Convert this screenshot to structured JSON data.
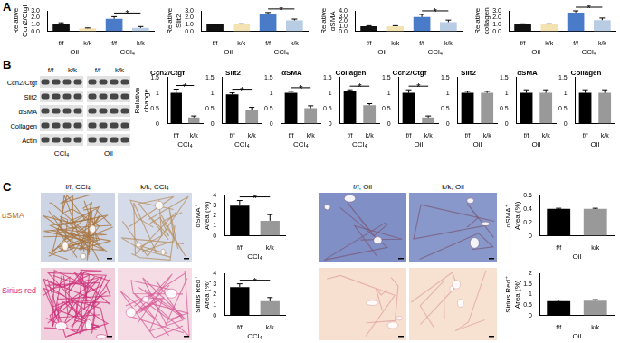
{
  "panel_labels": [
    "A",
    "B",
    "C"
  ],
  "chart_data": [
    {
      "type": "bar",
      "ylabel": [
        "Relative",
        "Ccn2/Ctgf"
      ],
      "categories": [
        "f/f",
        "k/k",
        "f/f",
        "k/k"
      ],
      "group_labels": [
        "Oil",
        "Oil",
        "CCl₄",
        "CCl₄"
      ],
      "values": [
        1.0,
        0.45,
        1.85,
        0.5
      ],
      "errors": [
        0.25,
        0.05,
        0.3,
        0.2
      ],
      "colors": [
        "#111111",
        "#f3e3b3",
        "#4a7bc8",
        "#b8cce4"
      ],
      "ylim": [
        0,
        3
      ],
      "yticks": [
        {
          "value": 0,
          "label": "0.0"
        },
        {
          "value": 1,
          "label": "1.0"
        },
        {
          "value": 2,
          "label": "2.0"
        },
        {
          "value": 3,
          "label": "3.0"
        }
      ],
      "grid": false,
      "annotations": [
        {
          "from": 2,
          "to": 3,
          "text": "*"
        }
      ]
    },
    {
      "type": "bar",
      "ylabel": [
        "Relative",
        "Slit2"
      ],
      "categories": [
        "f/f",
        "k/k",
        "f/f",
        "k/k"
      ],
      "group_labels": [
        "Oil",
        "Oil",
        "CCl₄",
        "CCl₄"
      ],
      "values": [
        1.0,
        1.0,
        2.6,
        1.6
      ],
      "errors": [
        0.05,
        0.1,
        0.15,
        0.2
      ],
      "colors": [
        "#111111",
        "#f3e3b3",
        "#4a7bc8",
        "#b8cce4"
      ],
      "ylim": [
        0,
        3
      ],
      "yticks": [
        {
          "value": 0,
          "label": "0.0"
        },
        {
          "value": 1,
          "label": "1.0"
        },
        {
          "value": 2,
          "label": "2.0"
        },
        {
          "value": 3,
          "label": "3.0"
        }
      ],
      "grid": false,
      "annotations": [
        {
          "from": 2,
          "to": 3,
          "text": "*"
        }
      ]
    },
    {
      "type": "bar",
      "ylabel": [
        "Relative",
        "αSMA"
      ],
      "categories": [
        "f/f",
        "k/k",
        "f/f",
        "k/k"
      ],
      "group_labels": [
        "Oil",
        "Oil",
        "CCl₄",
        "CCl₄"
      ],
      "values": [
        1.0,
        1.0,
        2.8,
        1.8
      ],
      "errors": [
        0.1,
        0.1,
        0.5,
        0.4
      ],
      "colors": [
        "#111111",
        "#f3e3b3",
        "#4a7bc8",
        "#b8cce4"
      ],
      "ylim": [
        0,
        4
      ],
      "yticks": [
        {
          "value": 0,
          "label": "0.0"
        },
        {
          "value": 1,
          "label": "1.0"
        },
        {
          "value": 2,
          "label": "2.0"
        },
        {
          "value": 3,
          "label": "3.0"
        },
        {
          "value": 4,
          "label": "4.0"
        }
      ],
      "grid": false,
      "annotations": [
        {
          "from": 2,
          "to": 3,
          "text": "*"
        }
      ]
    },
    {
      "type": "bar",
      "ylabel": [
        "Relative",
        "collagen"
      ],
      "categories": [
        "f/f",
        "k/k",
        "f/f",
        "k/k"
      ],
      "group_labels": [
        "Oil",
        "Oil",
        "CCl₄",
        "CCl₄"
      ],
      "values": [
        1.0,
        1.0,
        2.75,
        1.65
      ],
      "errors": [
        0.1,
        0.1,
        0.25,
        0.3
      ],
      "colors": [
        "#111111",
        "#f3e3b3",
        "#4a7bc8",
        "#b8cce4"
      ],
      "ylim": [
        0,
        3
      ],
      "yticks": [
        {
          "value": 0,
          "label": "0.0"
        },
        {
          "value": 1,
          "label": "1.0"
        },
        {
          "value": 2,
          "label": "2.0"
        },
        {
          "value": 3,
          "label": "3.0"
        }
      ],
      "grid": false,
      "annotations": [
        {
          "from": 2,
          "to": 3,
          "text": "*"
        }
      ]
    },
    {
      "type": "bar",
      "title": "Ccn2/Ctgf",
      "ylabel": [
        "Relative",
        "change"
      ],
      "categories": [
        "f/f",
        "k/k"
      ],
      "group_labels": [
        "CCl₄",
        "CCl₄"
      ],
      "values": [
        1.0,
        0.2
      ],
      "errors": [
        0.12,
        0.05
      ],
      "colors": [
        "#000000",
        "#999999"
      ],
      "ylim": [
        0,
        1.5
      ],
      "yticks": [
        0,
        0.5,
        1,
        1.5
      ],
      "grid": false,
      "annotations": [
        {
          "from": 0,
          "to": 1,
          "text": "*"
        }
      ]
    },
    {
      "type": "bar",
      "title": "Slit2",
      "categories": [
        "f/f",
        "k/k"
      ],
      "group_labels": [
        "CCl₄",
        "CCl₄"
      ],
      "values": [
        0.95,
        0.45
      ],
      "errors": [
        0.05,
        0.08
      ],
      "colors": [
        "#000000",
        "#999999"
      ],
      "ylim": [
        0,
        1.5
      ],
      "yticks": [
        0,
        0.5,
        1,
        1.5
      ],
      "grid": false,
      "annotations": [
        {
          "from": 0,
          "to": 1,
          "text": "*"
        }
      ]
    },
    {
      "type": "bar",
      "title": "αSMA",
      "categories": [
        "f/f",
        "k/k"
      ],
      "group_labels": [
        "CCl₄",
        "CCl₄"
      ],
      "values": [
        1.0,
        0.5
      ],
      "errors": [
        0.05,
        0.08
      ],
      "colors": [
        "#000000",
        "#999999"
      ],
      "ylim": [
        0,
        1.5
      ],
      "yticks": [
        0,
        0.5,
        1,
        1.5
      ],
      "grid": false,
      "annotations": [
        {
          "from": 0,
          "to": 1,
          "text": "*"
        }
      ]
    },
    {
      "type": "bar",
      "title": "Collagen",
      "categories": [
        "f/f",
        "k/k"
      ],
      "group_labels": [
        "CCl₄",
        "CCl₄"
      ],
      "values": [
        1.05,
        0.6
      ],
      "errors": [
        0.05,
        0.05
      ],
      "colors": [
        "#000000",
        "#999999"
      ],
      "ylim": [
        0,
        1.5
      ],
      "yticks": [
        0,
        0.5,
        1,
        1.5
      ],
      "grid": false,
      "annotations": [
        {
          "from": 0,
          "to": 1,
          "text": "*"
        }
      ]
    },
    {
      "type": "bar",
      "title": "Ccn2/Ctgf",
      "categories": [
        "f/f",
        "k/k"
      ],
      "group_labels": [
        "Oil",
        "Oil"
      ],
      "values": [
        1.0,
        0.2
      ],
      "errors": [
        0.1,
        0.05
      ],
      "colors": [
        "#000000",
        "#999999"
      ],
      "ylim": [
        0,
        1.5
      ],
      "yticks": [
        0,
        0.5,
        1,
        1.5
      ],
      "grid": false,
      "annotations": [
        {
          "from": 0,
          "to": 1,
          "text": "*"
        }
      ]
    },
    {
      "type": "bar",
      "title": "Slit2",
      "categories": [
        "f/f",
        "k/k"
      ],
      "group_labels": [
        "Oil",
        "Oil"
      ],
      "values": [
        1.0,
        1.0
      ],
      "errors": [
        0.05,
        0.05
      ],
      "colors": [
        "#000000",
        "#999999"
      ],
      "ylim": [
        0,
        1.5
      ],
      "yticks": [
        0,
        0.5,
        1,
        1.5
      ],
      "grid": false
    },
    {
      "type": "bar",
      "title": "αSMA",
      "categories": [
        "f/f",
        "k/k"
      ],
      "group_labels": [
        "Oil",
        "Oil"
      ],
      "values": [
        1.0,
        1.0
      ],
      "errors": [
        0.1,
        0.1
      ],
      "colors": [
        "#000000",
        "#999999"
      ],
      "ylim": [
        0,
        1.5
      ],
      "yticks": [
        0,
        0.5,
        1,
        1.5
      ],
      "grid": false
    },
    {
      "type": "bar",
      "title": "Collagen",
      "categories": [
        "f/f",
        "k/k"
      ],
      "group_labels": [
        "Oil",
        "Oil"
      ],
      "values": [
        1.0,
        1.0
      ],
      "errors": [
        0.1,
        0.1
      ],
      "colors": [
        "#000000",
        "#999999"
      ],
      "ylim": [
        0,
        1.5
      ],
      "yticks": [
        0,
        0.5,
        1,
        1.5
      ],
      "grid": false
    },
    {
      "type": "bar",
      "ylabel": [
        "αSMA⁺",
        "Area (%)"
      ],
      "categories": [
        "f/f",
        "k/k"
      ],
      "group_labels": [
        "CCl₄",
        "CCl₄"
      ],
      "values": [
        3.0,
        1.5
      ],
      "errors": [
        0.5,
        0.6
      ],
      "colors": [
        "#000000",
        "#999999"
      ],
      "ylim": [
        0,
        4
      ],
      "yticks": [
        0,
        1,
        2,
        3,
        4
      ],
      "grid": false,
      "annotations": [
        {
          "from": 0,
          "to": 1,
          "text": "*"
        }
      ]
    },
    {
      "type": "bar",
      "ylabel": [
        "Sirius Red⁺",
        "Area (%)"
      ],
      "categories": [
        "f/f",
        "k/k"
      ],
      "group_labels": [
        "CCl₄",
        "CCl₄"
      ],
      "values": [
        2.7,
        1.35
      ],
      "errors": [
        0.3,
        0.35
      ],
      "colors": [
        "#000000",
        "#999999"
      ],
      "ylim": [
        0,
        4
      ],
      "yticks": [
        0,
        1,
        2,
        3,
        4
      ],
      "grid": false,
      "annotations": [
        {
          "from": 0,
          "to": 1,
          "text": "*"
        }
      ]
    },
    {
      "type": "bar",
      "ylabel": [
        "αSMA⁺",
        "Area (%)"
      ],
      "categories": [
        "f/f",
        "k/k"
      ],
      "group_labels": [
        "Oil",
        "Oil"
      ],
      "values": [
        0.4,
        0.4
      ],
      "errors": [
        0.01,
        0.01
      ],
      "colors": [
        "#000000",
        "#999999"
      ],
      "ylim": [
        0,
        0.6
      ],
      "yticks": [
        0,
        0.2,
        0.4,
        0.6
      ],
      "grid": false
    },
    {
      "type": "bar",
      "ylabel": [
        "Sirius Red⁺",
        "Area (%)"
      ],
      "categories": [
        "f/f",
        "k/k"
      ],
      "group_labels": [
        "Oil",
        "Oil"
      ],
      "values": [
        0.68,
        0.7
      ],
      "errors": [
        0.05,
        0.05
      ],
      "colors": [
        "#000000",
        "#999999"
      ],
      "ylim": [
        0,
        2
      ],
      "yticks": [
        0,
        0.5,
        1,
        1.5,
        2
      ],
      "grid": false
    }
  ],
  "blot": {
    "rows": [
      "Ccn2/Ctgf",
      "Slit2",
      "αSMA",
      "Collagen",
      "Actin"
    ],
    "column_labels": [
      "f/f",
      "k/k",
      "f/f",
      "k/k"
    ],
    "group_labels": [
      "CCl₄",
      "Oil"
    ]
  },
  "histology": {
    "columns": [
      "f/f, CCl₄",
      "k/k, CCl₄",
      "f/f, Oil",
      "k/k, Oil"
    ],
    "rows": [
      {
        "label": "αSMA",
        "color": "#b8732f"
      },
      {
        "label": "Sirius red",
        "color": "#d6287f"
      }
    ]
  }
}
